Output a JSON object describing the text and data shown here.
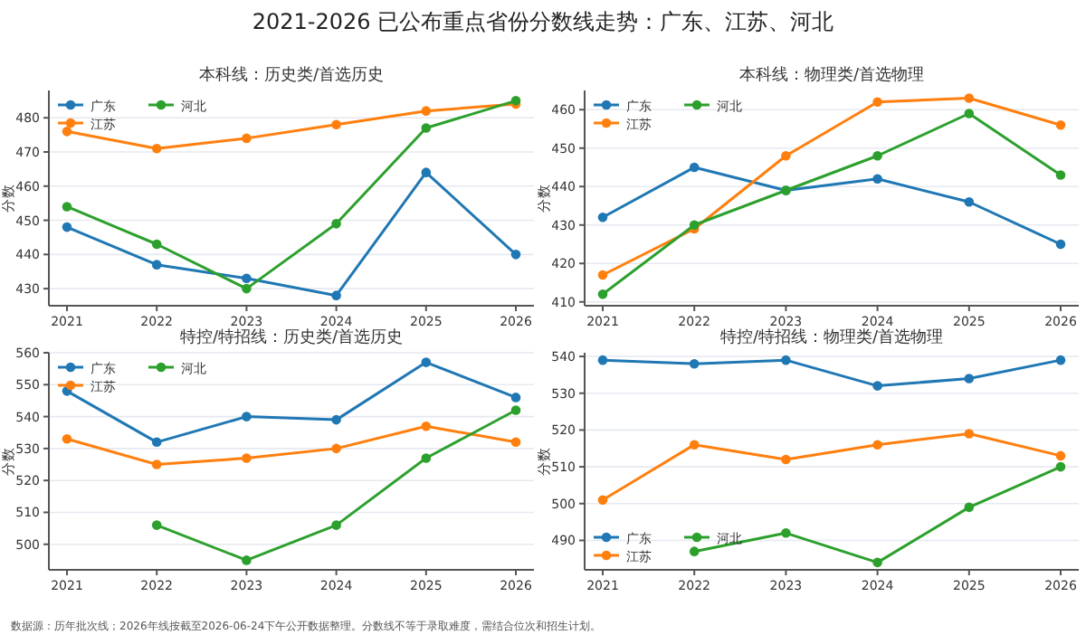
{
  "chart_data": [
    {
      "type": "line",
      "title": "2021-2026 已公布重点省份分数线走势：广东、江苏、河北",
      "subtitle": "本科线：历史类/首选历史",
      "ylabel": "分数",
      "categories": [
        "2021",
        "2022",
        "2023",
        "2024",
        "2025",
        "2026"
      ],
      "ylim": [
        425,
        488
      ],
      "yticks": [
        430,
        440,
        450,
        460,
        470,
        480
      ],
      "grid": "y",
      "legend": "top left",
      "marker": "circle",
      "series": [
        {
          "name": "广东",
          "color": "#1f77b4",
          "values": [
            448,
            437,
            433,
            428,
            464,
            440
          ]
        },
        {
          "name": "江苏",
          "color": "#ff7f0e",
          "values": [
            476,
            471,
            474,
            478,
            482,
            484
          ]
        },
        {
          "name": "河北",
          "color": "#2ca02c",
          "values": [
            454,
            443,
            430,
            449,
            477,
            485
          ]
        }
      ]
    },
    {
      "type": "line",
      "subtitle": "本科线：物理类/首选物理",
      "ylabel": "分数",
      "categories": [
        "2021",
        "2022",
        "2023",
        "2024",
        "2025",
        "2026"
      ],
      "ylim": [
        409,
        465
      ],
      "yticks": [
        410,
        420,
        430,
        440,
        450,
        460
      ],
      "grid": "y",
      "legend": "top left",
      "marker": "circle",
      "series": [
        {
          "name": "广东",
          "color": "#1f77b4",
          "values": [
            432,
            445,
            439,
            442,
            436,
            425
          ]
        },
        {
          "name": "江苏",
          "color": "#ff7f0e",
          "values": [
            417,
            429,
            448,
            462,
            463,
            456
          ]
        },
        {
          "name": "河北",
          "color": "#2ca02c",
          "values": [
            412,
            430,
            439,
            448,
            459,
            443
          ]
        }
      ]
    },
    {
      "type": "line",
      "subtitle": "特控/特招线：历史类/首选历史",
      "ylabel": "分数",
      "categories": [
        "2021",
        "2022",
        "2023",
        "2024",
        "2025",
        "2026"
      ],
      "ylim": [
        492,
        560
      ],
      "yticks": [
        500,
        510,
        520,
        530,
        540,
        550,
        560
      ],
      "grid": "y",
      "legend": "top left",
      "marker": "circle",
      "series": [
        {
          "name": "广东",
          "color": "#1f77b4",
          "values": [
            548,
            532,
            540,
            539,
            557,
            546
          ]
        },
        {
          "name": "江苏",
          "color": "#ff7f0e",
          "values": [
            533,
            525,
            527,
            530,
            537,
            532
          ]
        },
        {
          "name": "河北",
          "color": "#2ca02c",
          "values": [
            null,
            506,
            495,
            506,
            527,
            542
          ]
        }
      ]
    },
    {
      "type": "line",
      "subtitle": "特控/特招线：物理类/首选物理",
      "ylabel": "分数",
      "categories": [
        "2021",
        "2022",
        "2023",
        "2024",
        "2025",
        "2026"
      ],
      "ylim": [
        482,
        541
      ],
      "yticks": [
        490,
        500,
        510,
        520,
        530,
        540
      ],
      "grid": "y",
      "legend": "bottom left",
      "marker": "circle",
      "annotations": [
        "数据源：历年批次线；2026年线按截至2026-06-24下午公开数据整理。分数线不等于录取难度，需结合位次和招生计划。"
      ],
      "series": [
        {
          "name": "广东",
          "color": "#1f77b4",
          "values": [
            539,
            538,
            539,
            532,
            534,
            539
          ]
        },
        {
          "name": "江苏",
          "color": "#ff7f0e",
          "values": [
            501,
            516,
            512,
            516,
            519,
            513
          ]
        },
        {
          "name": "河北",
          "color": "#2ca02c",
          "values": [
            null,
            487,
            492,
            484,
            499,
            510
          ]
        }
      ]
    }
  ]
}
